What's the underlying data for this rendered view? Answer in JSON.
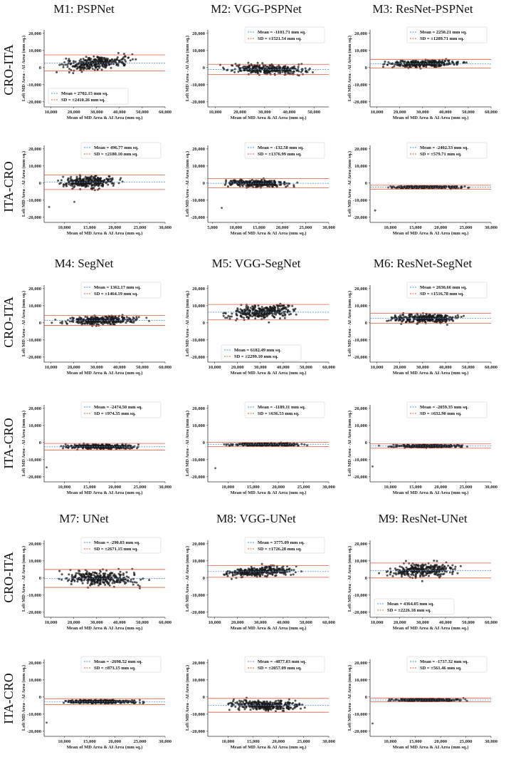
{
  "figure": {
    "column_titles": [
      [
        "M1: PSPNet",
        "M2: VGG-PSPNet",
        "M3: ResNet-PSPNet"
      ],
      [
        "M4: SegNet",
        "M5: VGG-SegNet",
        "M6: ResNet-SegNet"
      ],
      [
        "M7: UNet",
        "M8: VGG-UNet",
        "M9: ResNet-UNet"
      ]
    ],
    "row_labels": [
      "CRO-ITA",
      "ITA-CRO"
    ],
    "colors": {
      "points": "#1a1a1a",
      "mean_line": "#4a90d9",
      "sd_line": "#e05a3a",
      "axis": "#333333"
    }
  },
  "chart_data": [
    {
      "id": "M1-CRO-ITA",
      "type": "scatter",
      "xlabel": "Mean of MD Area & AI Area (mm sq.)",
      "ylabel": "Left MD Area - AI Area (mm sq.)",
      "xticks": [
        "10,000",
        "20,000",
        "30,000",
        "40,000",
        "50,000",
        "60,000"
      ],
      "xtick_values": [
        10000,
        20000,
        30000,
        40000,
        50000,
        60000
      ],
      "xlim": [
        7000,
        60000
      ],
      "yticks": [
        "20,000",
        "10,000",
        "0",
        "-10,000",
        "-20,000"
      ],
      "ytick_values": [
        20000,
        10000,
        0,
        -10000,
        -20000
      ],
      "ylim": [
        -23000,
        22000
      ],
      "legend_pos": "bottom-left",
      "mean_label": "Mean = 2702.15 mm sq.",
      "sd_label": "SD = ±2410.26 mm sq.",
      "mean": 2702.15,
      "sd": 2410.26,
      "x_range": [
        9000,
        50000
      ],
      "trend": 0.12,
      "spread": 1.3,
      "outliers": []
    },
    {
      "id": "M2-CRO-ITA",
      "type": "scatter",
      "xlabel": "Mean of MD Area & AI Area (mm sq.)",
      "ylabel": "Left MD Area - AI Area (mm sq.)",
      "xticks": [
        "10,000",
        "20,000",
        "30,000",
        "40,000",
        "50,000"
      ],
      "xtick_values": [
        10000,
        20000,
        30000,
        40000,
        50000
      ],
      "xlim": [
        7000,
        56000
      ],
      "yticks": [
        "20,000",
        "10,000",
        "0",
        "-10,000",
        "-20,000"
      ],
      "ytick_values": [
        20000,
        10000,
        0,
        -10000,
        -20000
      ],
      "ylim": [
        -23000,
        22000
      ],
      "legend_pos": "top-right",
      "mean_label": "Mean = -1101.71 mm sq.",
      "sd_label": "SD = ±1521.54 mm sq.",
      "mean": -1101.71,
      "sd": 1521.54,
      "x_range": [
        9000,
        54000
      ],
      "trend": -0.05,
      "spread": 1.6,
      "outliers": []
    },
    {
      "id": "M3-CRO-ITA",
      "type": "scatter",
      "xlabel": "Mean of MD Area & AI Area (mm sq.)",
      "ylabel": "Left MD Area - AI Area (mm sq.)",
      "xticks": [
        "10,000",
        "20,000",
        "30,000",
        "40,000",
        "50,000",
        "60,000"
      ],
      "xtick_values": [
        10000,
        20000,
        30000,
        40000,
        50000,
        60000
      ],
      "xlim": [
        7000,
        60000
      ],
      "yticks": [
        "20,000",
        "10,000",
        "0",
        "-10,000",
        "-20,000"
      ],
      "ytick_values": [
        20000,
        10000,
        0,
        -10000,
        -20000
      ],
      "ylim": [
        -23000,
        22000
      ],
      "legend_pos": "top-right",
      "mean_label": "Mean = 2250.21 mm sq.",
      "sd_label": "SD = ±1289.71 mm sq.",
      "mean": 2250.21,
      "sd": 1289.71,
      "x_range": [
        9000,
        52000
      ],
      "trend": 0.02,
      "spread": 1.4,
      "outliers": []
    },
    {
      "id": "M1-ITA-CRO",
      "type": "scatter",
      "xlabel": "Mean of MD Area & AI Area (mm sq.)",
      "ylabel": "Left MD Area - AI Area (mm sq.)",
      "xticks": [
        "10,000",
        "15,000",
        "20,000",
        "25,000",
        "30,000"
      ],
      "xtick_values": [
        10000,
        15000,
        20000,
        25000,
        30000
      ],
      "xlim": [
        6000,
        30000
      ],
      "yticks": [
        "20,000",
        "10,000",
        "0",
        "-10,000",
        "-20,000"
      ],
      "ytick_values": [
        20000,
        10000,
        0,
        -10000,
        -20000
      ],
      "ylim": [
        -23000,
        22000
      ],
      "legend_pos": "top-right",
      "mean_label": "Mean = 496.77 mm sq.",
      "sd_label": "SD = ±2180.10 mm sq.",
      "mean": 496.77,
      "sd": 2180.1,
      "x_range": [
        7500,
        22000
      ],
      "trend": 0.1,
      "spread": 1.3,
      "outliers": [
        [
          7000,
          -14000
        ],
        [
          12000,
          -11000
        ]
      ]
    },
    {
      "id": "M2-ITA-CRO",
      "type": "scatter",
      "xlabel": "Mean of MD Area & AI Area (mm sq.)",
      "ylabel": "Left MD Area - AI Area (mm sq.)",
      "xticks": [
        "5,000",
        "10,000",
        "15,000",
        "20,000",
        "25,000",
        "30,000"
      ],
      "xtick_values": [
        5000,
        10000,
        15000,
        20000,
        25000,
        30000
      ],
      "xlim": [
        4000,
        30000
      ],
      "yticks": [
        "20,000",
        "10,000",
        "0",
        "-10,000",
        "-20,000"
      ],
      "ytick_values": [
        20000,
        10000,
        0,
        -10000,
        -20000
      ],
      "ylim": [
        -23000,
        22000
      ],
      "legend_pos": "top-right",
      "mean_label": "Mean = -132.58 mm sq.",
      "sd_label": "SD = ±1376.99 mm sq.",
      "mean": -132.58,
      "sd": 1376.99,
      "x_range": [
        5500,
        24000
      ],
      "trend": -0.05,
      "spread": 1.2,
      "outliers": [
        [
          7000,
          -14500
        ]
      ]
    },
    {
      "id": "M3-ITA-CRO",
      "type": "scatter",
      "xlabel": "Mean of MD Area & AI Area (mm sq.)",
      "ylabel": "Left MD Area - AI Area (mm sq.)",
      "xticks": [
        "10,000",
        "15,000",
        "20,000",
        "25,000",
        "30,000"
      ],
      "xtick_values": [
        10000,
        15000,
        20000,
        25000,
        30000
      ],
      "xlim": [
        6000,
        30000
      ],
      "yticks": [
        "20,000",
        "10,000",
        "0",
        "-10,000",
        "-20,000"
      ],
      "ytick_values": [
        20000,
        10000,
        0,
        -10000,
        -20000
      ],
      "ylim": [
        -23000,
        22000
      ],
      "legend_pos": "top-right",
      "mean_label": "Mean = -2402.33 mm sq.",
      "sd_label": "SD = ±579.71 mm sq.",
      "mean": -2402.33,
      "sd": 579.71,
      "x_range": [
        7500,
        27000
      ],
      "trend": 0,
      "spread": 1.0,
      "outliers": [
        [
          7000,
          -16000
        ]
      ]
    },
    {
      "id": "M4-CRO-ITA",
      "type": "scatter",
      "xlabel": "Mean of MD Area & AI Area (mm sq.)",
      "ylabel": "Left MD Area - AI Area (mm sq.)",
      "xticks": [
        "10,000",
        "20,000",
        "30,000",
        "40,000",
        "50,000",
        "60,000"
      ],
      "xtick_values": [
        10000,
        20000,
        30000,
        40000,
        50000,
        60000
      ],
      "xlim": [
        7000,
        60000
      ],
      "yticks": [
        "20,000",
        "10,000",
        "0",
        "-10,000",
        "-20,000"
      ],
      "ytick_values": [
        20000,
        10000,
        0,
        -10000,
        -20000
      ],
      "ylim": [
        -23000,
        22000
      ],
      "legend_pos": "top-right",
      "mean_label": "Mean = 1362.17 mm sq.",
      "sd_label": "SD = ±1464.19 mm sq.",
      "mean": 1362.17,
      "sd": 1464.19,
      "x_range": [
        9000,
        54000
      ],
      "trend": 0.03,
      "spread": 1.5,
      "outliers": []
    },
    {
      "id": "M5-CRO-ITA",
      "type": "scatter",
      "xlabel": "Mean of MD Area & AI Area (mm sq.)",
      "ylabel": "Left MD Area - AI Area (mm sq.)",
      "xticks": [
        "10,000",
        "20,000",
        "30,000",
        "40,000",
        "50,000",
        "60,000"
      ],
      "xtick_values": [
        10000,
        20000,
        30000,
        40000,
        50000,
        60000
      ],
      "xlim": [
        7000,
        60000
      ],
      "yticks": [
        "20,000",
        "10,000",
        "0",
        "-10,000",
        "-20,000"
      ],
      "ytick_values": [
        20000,
        10000,
        0,
        -10000,
        -20000
      ],
      "ylim": [
        -23000,
        22000
      ],
      "legend_pos": "bottom-center",
      "mean_label": "Mean = 6182.49 mm sq.",
      "sd_label": "SD = ±2299.10 mm sq.",
      "mean": 6182.49,
      "sd": 2299.1,
      "x_range": [
        9000,
        50000
      ],
      "trend": 0.1,
      "spread": 1.4,
      "outliers": []
    },
    {
      "id": "M6-CRO-ITA",
      "type": "scatter",
      "xlabel": "Mean of MD Area & AI Area (mm sq.)",
      "ylabel": "Left MD Area - AI Area (mm sq.)",
      "xticks": [
        "10,000",
        "20,000",
        "30,000",
        "40,000",
        "50,000",
        "60,000"
      ],
      "xtick_values": [
        10000,
        20000,
        30000,
        40000,
        50000,
        60000
      ],
      "xlim": [
        7000,
        60000
      ],
      "yticks": [
        "20,000",
        "10,000",
        "0",
        "-10,000",
        "-20,000"
      ],
      "ytick_values": [
        20000,
        10000,
        0,
        -10000,
        -20000
      ],
      "ylim": [
        -23000,
        22000
      ],
      "legend_pos": "top-right",
      "mean_label": "Mean = 2630.66 mm sq.",
      "sd_label": "SD = ±1516.78 mm sq.",
      "mean": 2630.66,
      "sd": 1516.78,
      "x_range": [
        9000,
        53000
      ],
      "trend": 0.03,
      "spread": 1.5,
      "outliers": []
    },
    {
      "id": "M4-ITA-CRO",
      "type": "scatter",
      "xlabel": "Mean of MD Area & AI Area (mm sq.)",
      "ylabel": "Left MD Area - AI Area (mm sq.)",
      "xticks": [
        "10,000",
        "15,000",
        "20,000",
        "25,000",
        "30,000"
      ],
      "xtick_values": [
        10000,
        15000,
        20000,
        25000,
        30000
      ],
      "xlim": [
        6000,
        30000
      ],
      "yticks": [
        "20,000",
        "10,000",
        "0",
        "-10,000",
        "-20,000"
      ],
      "ytick_values": [
        20000,
        10000,
        0,
        -10000,
        -20000
      ],
      "ylim": [
        -23000,
        22000
      ],
      "legend_pos": "top-right",
      "mean_label": "Mean = -2474.50 mm sq.",
      "sd_label": "SD = ±974.35 mm sq.",
      "mean": -2474.5,
      "sd": 974.35,
      "x_range": [
        7500,
        27000
      ],
      "trend": 0,
      "spread": 1.1,
      "outliers": [
        [
          6500,
          -14500
        ]
      ]
    },
    {
      "id": "M5-ITA-CRO",
      "type": "scatter",
      "xlabel": "Mean of MD Area & AI Area (mm sq.)",
      "ylabel": "Left MD Area - AI Area (mm sq.)",
      "xticks": [
        "10,000",
        "15,000",
        "20,000",
        "25,000",
        "30,000"
      ],
      "xtick_values": [
        10000,
        15000,
        20000,
        25000,
        30000
      ],
      "xlim": [
        6000,
        30000
      ],
      "yticks": [
        "20,000",
        "10,000",
        "0",
        "-10,000",
        "-20,000"
      ],
      "ytick_values": [
        20000,
        10000,
        0,
        -10000,
        -20000
      ],
      "ylim": [
        -23000,
        22000
      ],
      "legend_pos": "top-right",
      "mean_label": "Mean = -1189.11 mm sq.",
      "sd_label": "SD = ±636.53 mm sq.",
      "mean": -1189.11,
      "sd": 636.53,
      "x_range": [
        7500,
        27000
      ],
      "trend": 0,
      "spread": 1.0,
      "outliers": [
        [
          7500,
          -15000
        ]
      ]
    },
    {
      "id": "M6-ITA-CRO",
      "type": "scatter",
      "xlabel": "Mean of MD Area & AI Area (mm sq.)",
      "ylabel": "Left MD Area - AI Area (mm sq.)",
      "xticks": [
        "10,000",
        "15,000",
        "20,000",
        "25,000",
        "30,000"
      ],
      "xtick_values": [
        10000,
        15000,
        20000,
        25000,
        30000
      ],
      "xlim": [
        6000,
        30000
      ],
      "yticks": [
        "20,000",
        "10,000",
        "0",
        "-10,000",
        "-20,000"
      ],
      "ytick_values": [
        20000,
        10000,
        0,
        -10000,
        -20000
      ],
      "ylim": [
        -23000,
        22000
      ],
      "legend_pos": "top-right",
      "mean_label": "Mean = -2059.35 mm sq.",
      "sd_label": "SD = ±632.90 mm sq.",
      "mean": -2059.35,
      "sd": 632.9,
      "x_range": [
        7500,
        27000
      ],
      "trend": 0,
      "spread": 1.0,
      "outliers": [
        [
          6500,
          -14000
        ]
      ]
    },
    {
      "id": "M7-CRO-ITA",
      "type": "scatter",
      "xlabel": "Mean of MD Area & AI Area (mm sq.)",
      "ylabel": "Left MD Area - AI Area (mm sq.)",
      "xticks": [
        "10,000",
        "20,000",
        "30,000",
        "40,000",
        "50,000",
        "60,000"
      ],
      "xtick_values": [
        10000,
        20000,
        30000,
        40000,
        50000,
        60000
      ],
      "xlim": [
        7000,
        60000
      ],
      "yticks": [
        "20,000",
        "10,000",
        "0",
        "-10,000",
        "-20,000"
      ],
      "ytick_values": [
        20000,
        10000,
        0,
        -10000,
        -20000
      ],
      "ylim": [
        -23000,
        22000
      ],
      "legend_pos": "top-right",
      "mean_label": "Mean = -290.03 mm sq.",
      "sd_label": "SD = ±2671.15 mm sq.",
      "mean": -290.03,
      "sd": 2671.15,
      "x_range": [
        9000,
        55000
      ],
      "trend": -0.04,
      "spread": 1.4,
      "outliers": []
    },
    {
      "id": "M8-CRO-ITA",
      "type": "scatter",
      "xlabel": "Mean of MD Area & AI Area (mm sq.)",
      "ylabel": "Left MD Area - AI Area (mm sq.)",
      "xticks": [
        "10,000",
        "20,000",
        "30,000",
        "40,000",
        "50,000",
        "60,000"
      ],
      "xtick_values": [
        10000,
        20000,
        30000,
        40000,
        50000,
        60000
      ],
      "xlim": [
        7000,
        60000
      ],
      "yticks": [
        "20,000",
        "10,000",
        "0",
        "-10,000",
        "-20,000"
      ],
      "ytick_values": [
        20000,
        10000,
        0,
        -10000,
        -20000
      ],
      "ylim": [
        -23000,
        22000
      ],
      "legend_pos": "top-right",
      "mean_label": "Mean = 3775.09 mm sq.",
      "sd_label": "SD = ±1726.28 mm sq.",
      "mean": 3775.09,
      "sd": 1726.28,
      "x_range": [
        9000,
        50000
      ],
      "trend": 0.05,
      "spread": 1.4,
      "outliers": []
    },
    {
      "id": "M9-CRO-ITA",
      "type": "scatter",
      "xlabel": "Mean of MD Area & AI Area (mm sq.)",
      "ylabel": "Left MD Area - AI Area (mm sq.)",
      "xticks": [
        "10,000",
        "20,000",
        "30,000",
        "40,000",
        "50,000",
        "60,000"
      ],
      "xtick_values": [
        10000,
        20000,
        30000,
        40000,
        50000,
        60000
      ],
      "xlim": [
        7000,
        60000
      ],
      "yticks": [
        "20,000",
        "10,000",
        "0",
        "-10,000",
        "-20,000"
      ],
      "ytick_values": [
        20000,
        10000,
        0,
        -10000,
        -20000
      ],
      "ylim": [
        -23000,
        22000
      ],
      "legend_pos": "bottom-left",
      "mean_label": "Mean = 4364.05 mm sq.",
      "sd_label": "SD = ±2226.18 mm sq.",
      "mean": 4364.05,
      "sd": 2226.18,
      "x_range": [
        9000,
        50000
      ],
      "trend": 0.06,
      "spread": 1.4,
      "outliers": []
    },
    {
      "id": "M7-ITA-CRO",
      "type": "scatter",
      "xlabel": "Mean of MD Area & AI Area (mm sq.)",
      "ylabel": "Left MD Area - AI Area (mm sq.)",
      "xticks": [
        "10,000",
        "15,000",
        "20,000",
        "25,000",
        "30,000"
      ],
      "xtick_values": [
        10000,
        15000,
        20000,
        25000,
        30000
      ],
      "xlim": [
        6000,
        30000
      ],
      "yticks": [
        "20,000",
        "10,000",
        "0",
        "-10,000",
        "-20,000"
      ],
      "ytick_values": [
        20000,
        10000,
        0,
        -10000,
        -20000
      ],
      "ylim": [
        -23000,
        22000
      ],
      "legend_pos": "top-right",
      "mean_label": "Mean = -2698.52 mm sq.",
      "sd_label": "SD = ±873.15 mm sq.",
      "mean": -2698.52,
      "sd": 873.15,
      "x_range": [
        7500,
        27000
      ],
      "trend": 0,
      "spread": 1.1,
      "outliers": [
        [
          6500,
          -15000
        ]
      ]
    },
    {
      "id": "M8-ITA-CRO",
      "type": "scatter",
      "xlabel": "Mean of MD Area & AI Area (mm sq.)",
      "ylabel": "Left MD Area - AI Area (mm sq.)",
      "xticks": [
        "10,000",
        "15,000",
        "20,000",
        "25,000",
        "30,000"
      ],
      "xtick_values": [
        10000,
        15000,
        20000,
        25000,
        30000
      ],
      "xlim": [
        6000,
        30000
      ],
      "yticks": [
        "20,000",
        "10,000",
        "0",
        "-10,000",
        "-20,000"
      ],
      "ytick_values": [
        20000,
        10000,
        0,
        -10000,
        -20000
      ],
      "ylim": [
        -23000,
        22000
      ],
      "legend_pos": "top-right",
      "mean_label": "Mean = -4877.03 mm sq.",
      "sd_label": "SD = ±2057.09 mm sq.",
      "mean": -4877.03,
      "sd": 2057.09,
      "x_range": [
        8000,
        27000
      ],
      "trend": -0.1,
      "spread": 1.3,
      "outliers": []
    },
    {
      "id": "M9-ITA-CRO",
      "type": "scatter",
      "xlabel": "Mean of MD Area & AI Area (mm sq.)",
      "ylabel": "Left MD Area - AI Area (mm sq.)",
      "xticks": [
        "10,000",
        "15,000",
        "20,000",
        "25,000",
        "30,000"
      ],
      "xtick_values": [
        10000,
        15000,
        20000,
        25000,
        30000
      ],
      "xlim": [
        6000,
        30000
      ],
      "yticks": [
        "20,000",
        "10,000",
        "0",
        "-10,000",
        "-20,000"
      ],
      "ytick_values": [
        20000,
        10000,
        0,
        -10000,
        -20000
      ],
      "ylim": [
        -23000,
        22000
      ],
      "legend_pos": "top-right",
      "mean_label": "Mean = -1737.32 mm sq.",
      "sd_label": "SD = ±561.46 mm sq.",
      "mean": -1737.32,
      "sd": 561.46,
      "x_range": [
        7500,
        27000
      ],
      "trend": 0,
      "spread": 1.0,
      "outliers": [
        [
          6500,
          -15500
        ]
      ]
    }
  ]
}
